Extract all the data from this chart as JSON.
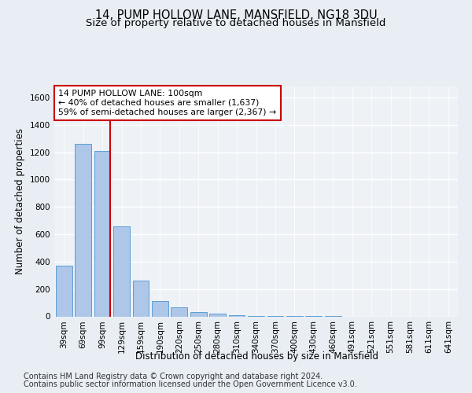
{
  "title": "14, PUMP HOLLOW LANE, MANSFIELD, NG18 3DU",
  "subtitle": "Size of property relative to detached houses in Mansfield",
  "xlabel": "Distribution of detached houses by size in Mansfield",
  "ylabel": "Number of detached properties",
  "footer_line1": "Contains HM Land Registry data © Crown copyright and database right 2024.",
  "footer_line2": "Contains public sector information licensed under the Open Government Licence v3.0.",
  "categories": [
    "39sqm",
    "69sqm",
    "99sqm",
    "129sqm",
    "159sqm",
    "190sqm",
    "220sqm",
    "250sqm",
    "280sqm",
    "310sqm",
    "340sqm",
    "370sqm",
    "400sqm",
    "430sqm",
    "460sqm",
    "491sqm",
    "521sqm",
    "551sqm",
    "581sqm",
    "611sqm",
    "641sqm"
  ],
  "values": [
    370,
    1260,
    1210,
    660,
    260,
    110,
    65,
    30,
    20,
    8,
    5,
    3,
    2,
    1,
    1,
    0,
    0,
    0,
    0,
    0,
    0
  ],
  "bar_color": "#aec6e8",
  "bar_edge_color": "#5a9fd4",
  "vline_index": 2,
  "vline_color": "#cc0000",
  "annotation_box_text": "14 PUMP HOLLOW LANE: 100sqm\n← 40% of detached houses are smaller (1,637)\n59% of semi-detached houses are larger (2,367) →",
  "annotation_box_color": "#ffffff",
  "annotation_box_edge_color": "#cc0000",
  "ylim": [
    0,
    1680
  ],
  "yticks": [
    0,
    200,
    400,
    600,
    800,
    1000,
    1200,
    1400,
    1600
  ],
  "bg_color": "#e8eef4",
  "plot_bg_color": "#eef2f7",
  "grid_color": "#ffffff",
  "title_fontsize": 10.5,
  "subtitle_fontsize": 9.5,
  "axis_label_fontsize": 8.5,
  "tick_fontsize": 7.5,
  "annotation_fontsize": 7.8,
  "footer_fontsize": 7.0
}
